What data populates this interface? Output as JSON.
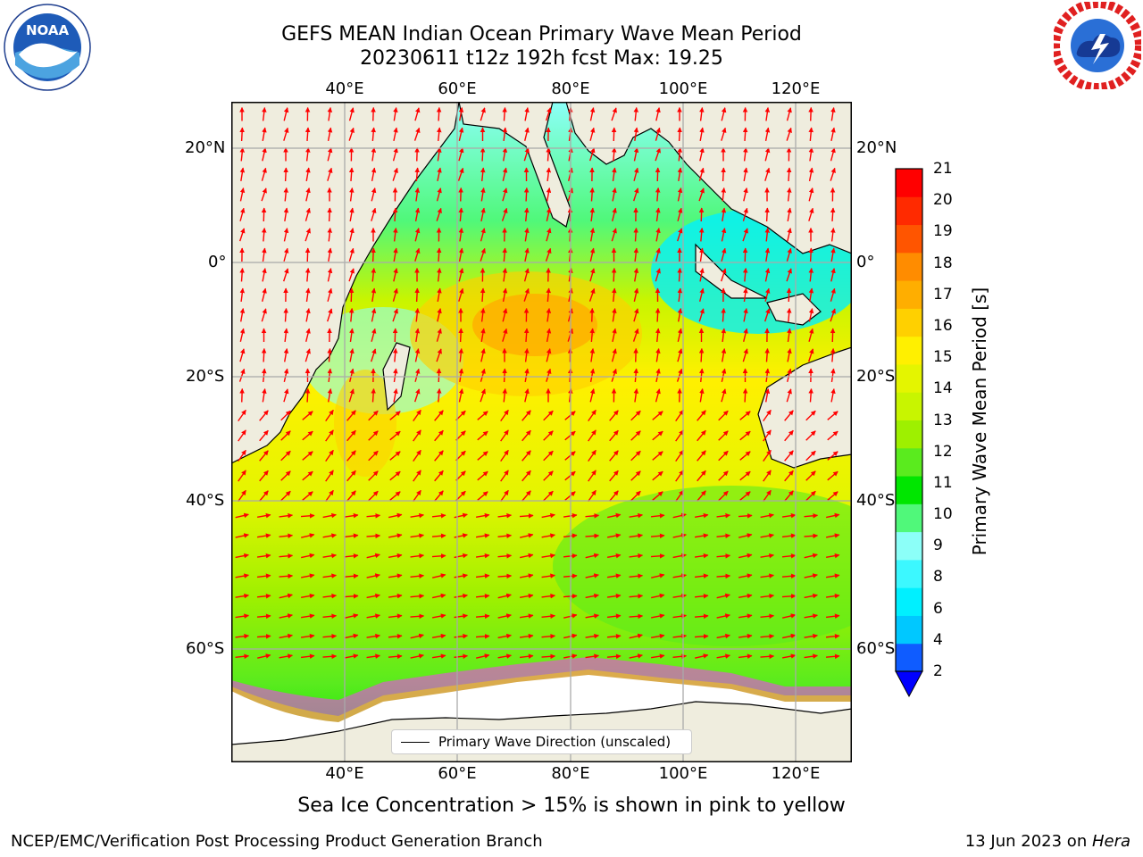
{
  "header": {
    "title_line1": "GEFS MEAN Indian Ocean Primary Wave Mean Period",
    "title_line2": "20230611 t12z 192h fcst   Max: 19.25"
  },
  "logos": {
    "noaa": {
      "text": "NOAA",
      "ring_text": "NATIONAL OCEANIC AND ATMOSPHERIC ADMINISTRATION · U.S. DEPARTMENT OF COMMERCE"
    },
    "nws": {
      "ring_text": "NATIONAL WEATHER SERVICE"
    }
  },
  "map": {
    "lon_ticks": [
      "40°E",
      "60°E",
      "80°E",
      "100°E",
      "120°E"
    ],
    "lat_ticks": [
      "20°N",
      "0°",
      "20°S",
      "40°S",
      "60°S"
    ],
    "land_color": "#efedde",
    "ice_color": "#ffffff",
    "arrow_color": "#ff0000",
    "legend_label": "Primary Wave Direction (unscaled)"
  },
  "colorbar": {
    "label": "Primary Wave Mean Period [s]",
    "tick_labels": [
      "2",
      "4",
      "6",
      "8",
      "9",
      "10",
      "11",
      "12",
      "13",
      "14",
      "15",
      "16",
      "17",
      "18",
      "19",
      "20",
      "21"
    ],
    "colors": [
      "#0f5cff",
      "#00c8ff",
      "#00f0ff",
      "#3cf8ff",
      "#8cfff8",
      "#50f87a",
      "#00e600",
      "#5aeb1e",
      "#9ef000",
      "#c8f500",
      "#e4f500",
      "#fff000",
      "#ffd000",
      "#ffae00",
      "#ff8c00",
      "#ff5500",
      "#ff2a00",
      "#ff0000"
    ],
    "extend_color": "#0000ff"
  },
  "caption": "Sea Ice Concentration > 15% is shown in pink to yellow",
  "footer": {
    "left": "NCEP/EMC/Verification Post Processing Product Generation Branch",
    "right_date": "13 Jun 2023 on ",
    "right_machine": "Hera"
  }
}
